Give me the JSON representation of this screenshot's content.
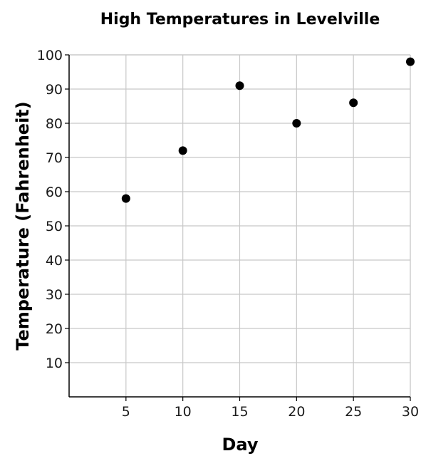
{
  "chart_data": {
    "type": "scatter",
    "title": "High Temperatures in Levelville",
    "xlabel": "Day",
    "ylabel": "Temperature (Fahrenheit)",
    "xlim": [
      0,
      30
    ],
    "ylim": [
      0,
      100
    ],
    "x_ticks": [
      5,
      10,
      15,
      20,
      25,
      30
    ],
    "y_ticks": [
      10,
      20,
      30,
      40,
      50,
      60,
      70,
      80,
      90,
      100
    ],
    "grid": true,
    "legend": "none",
    "point_color": "#000000",
    "points": [
      {
        "x": 5,
        "y": 58
      },
      {
        "x": 10,
        "y": 72
      },
      {
        "x": 15,
        "y": 91
      },
      {
        "x": 20,
        "y": 80
      },
      {
        "x": 25,
        "y": 86
      },
      {
        "x": 30,
        "y": 98
      }
    ]
  }
}
